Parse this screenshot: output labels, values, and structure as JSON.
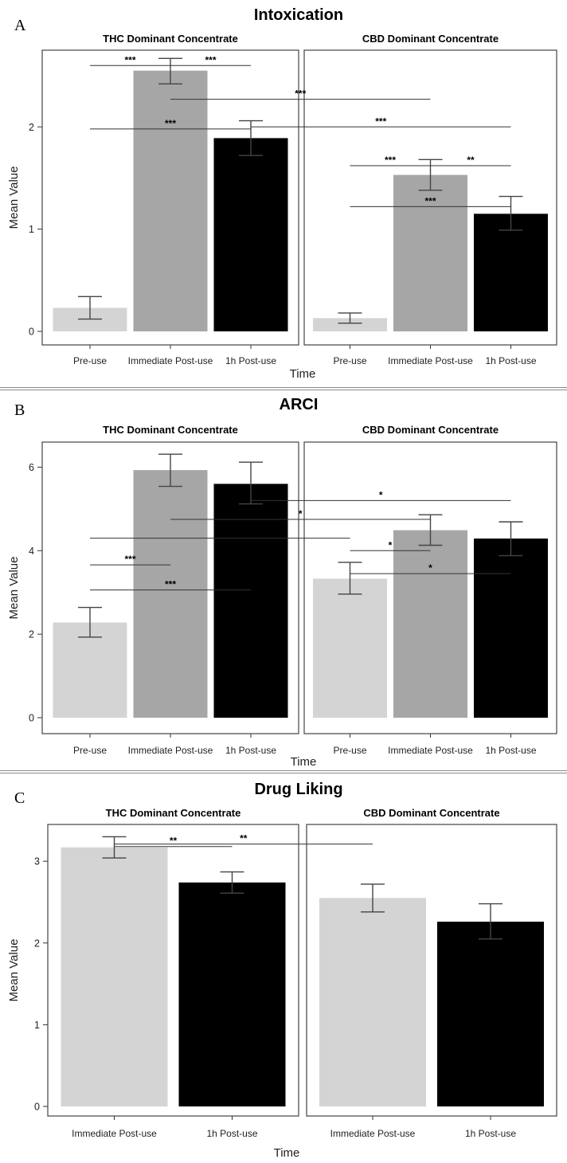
{
  "chart_data": [
    {
      "type": "bar",
      "panel_letter": "A",
      "title": "Intoxication",
      "xlabel": "Time",
      "ylabel": "Mean Value",
      "ylim": [
        0,
        2.75
      ],
      "yticks": [
        0,
        1,
        2
      ],
      "ytick_labels": [
        "0",
        "1",
        "2"
      ],
      "categories": [
        "Pre-use",
        "Immediate Post-use",
        "1h Post-use"
      ],
      "bar_colors": [
        "#d4d4d4",
        "#a6a6a6",
        "#000000"
      ],
      "facets": [
        {
          "title": "THC Dominant Concentrate",
          "values": [
            0.23,
            2.55,
            1.89
          ],
          "error": [
            [
              0.12,
              0.34
            ],
            [
              2.42,
              2.67
            ],
            [
              1.72,
              2.06
            ]
          ]
        },
        {
          "title": "CBD Dominant Concentrate",
          "values": [
            0.13,
            1.53,
            1.15
          ],
          "error": [
            [
              0.08,
              0.18
            ],
            [
              1.38,
              1.68
            ],
            [
              0.99,
              1.32
            ]
          ]
        }
      ],
      "annotations": [
        {
          "label": "***",
          "from": [
            0,
            0
          ],
          "to": [
            0,
            1
          ],
          "level": 2.6
        },
        {
          "label": "***",
          "from": [
            0,
            1
          ],
          "to": [
            0,
            2
          ],
          "level": 2.6
        },
        {
          "label": "***",
          "from": [
            0,
            1
          ],
          "to": [
            1,
            1
          ],
          "level": 2.27
        },
        {
          "label": "***",
          "from": [
            0,
            0
          ],
          "to": [
            0,
            2
          ],
          "level": 1.98
        },
        {
          "label": "***",
          "from": [
            0,
            2
          ],
          "to": [
            1,
            2
          ],
          "level": 2.0
        },
        {
          "label": "***",
          "from": [
            1,
            0
          ],
          "to": [
            1,
            1
          ],
          "level": 1.62
        },
        {
          "label": "**",
          "from": [
            1,
            1
          ],
          "to": [
            1,
            2
          ],
          "level": 1.62
        },
        {
          "label": "***",
          "from": [
            1,
            0
          ],
          "to": [
            1,
            2
          ],
          "level": 1.22
        }
      ]
    },
    {
      "type": "bar",
      "panel_letter": "B",
      "title": "ARCI",
      "xlabel": "Time",
      "ylabel": "Mean Value",
      "ylim": [
        0,
        6.6
      ],
      "yticks": [
        0,
        2,
        4,
        6
      ],
      "ytick_labels": [
        "0",
        "2",
        "4",
        "6"
      ],
      "categories": [
        "Pre-use",
        "Immediate Post-use",
        "1h Post-use"
      ],
      "bar_colors": [
        "#d4d4d4",
        "#a6a6a6",
        "#000000"
      ],
      "facets": [
        {
          "title": "THC Dominant Concentrate",
          "values": [
            2.28,
            5.93,
            5.6
          ],
          "error": [
            [
              1.93,
              2.64
            ],
            [
              5.54,
              6.31
            ],
            [
              5.12,
              6.12
            ]
          ]
        },
        {
          "title": "CBD Dominant Concentrate",
          "values": [
            3.33,
            4.49,
            4.29
          ],
          "error": [
            [
              2.96,
              3.72
            ],
            [
              4.13,
              4.86
            ],
            [
              3.88,
              4.69
            ]
          ]
        }
      ],
      "annotations": [
        {
          "label": "*",
          "from": [
            0,
            2
          ],
          "to": [
            1,
            2
          ],
          "level": 5.2
        },
        {
          "label": "*",
          "from": [
            0,
            1
          ],
          "to": [
            1,
            1
          ],
          "level": 4.75
        },
        {
          "label": "*",
          "from": [
            0,
            0
          ],
          "to": [
            1,
            0
          ],
          "level": 4.3
        },
        {
          "label": "***",
          "from": [
            0,
            0
          ],
          "to": [
            0,
            1
          ],
          "level": 3.66
        },
        {
          "label": "***",
          "from": [
            0,
            0
          ],
          "to": [
            0,
            2
          ],
          "level": 3.06
        },
        {
          "label": "*",
          "from": [
            1,
            0
          ],
          "to": [
            1,
            1
          ],
          "level": 4.0
        },
        {
          "label": "*",
          "from": [
            1,
            0
          ],
          "to": [
            1,
            2
          ],
          "level": 3.45
        }
      ]
    },
    {
      "type": "bar",
      "panel_letter": "C",
      "title": "Drug Liking",
      "xlabel": "Time",
      "ylabel": "Mean Value",
      "ylim": [
        0,
        3.45
      ],
      "yticks": [
        0,
        1,
        2,
        3
      ],
      "ytick_labels": [
        "0",
        "1",
        "2",
        "3"
      ],
      "categories": [
        "Immediate Post-use",
        "1h Post-use"
      ],
      "bar_colors": [
        "#d4d4d4",
        "#000000"
      ],
      "facets": [
        {
          "title": "THC Dominant Concentrate",
          "values": [
            3.17,
            2.74
          ],
          "error": [
            [
              3.04,
              3.3
            ],
            [
              2.61,
              2.87
            ]
          ]
        },
        {
          "title": "CBD Dominant Concentrate",
          "values": [
            2.55,
            2.26
          ],
          "error": [
            [
              2.38,
              2.72
            ],
            [
              2.05,
              2.48
            ]
          ]
        }
      ],
      "annotations": [
        {
          "label": "**",
          "from": [
            0,
            0
          ],
          "to": [
            0,
            1
          ],
          "level": 3.18
        },
        {
          "label": "**",
          "from": [
            0,
            0
          ],
          "to": [
            1,
            0
          ],
          "level": 3.21
        }
      ]
    }
  ]
}
